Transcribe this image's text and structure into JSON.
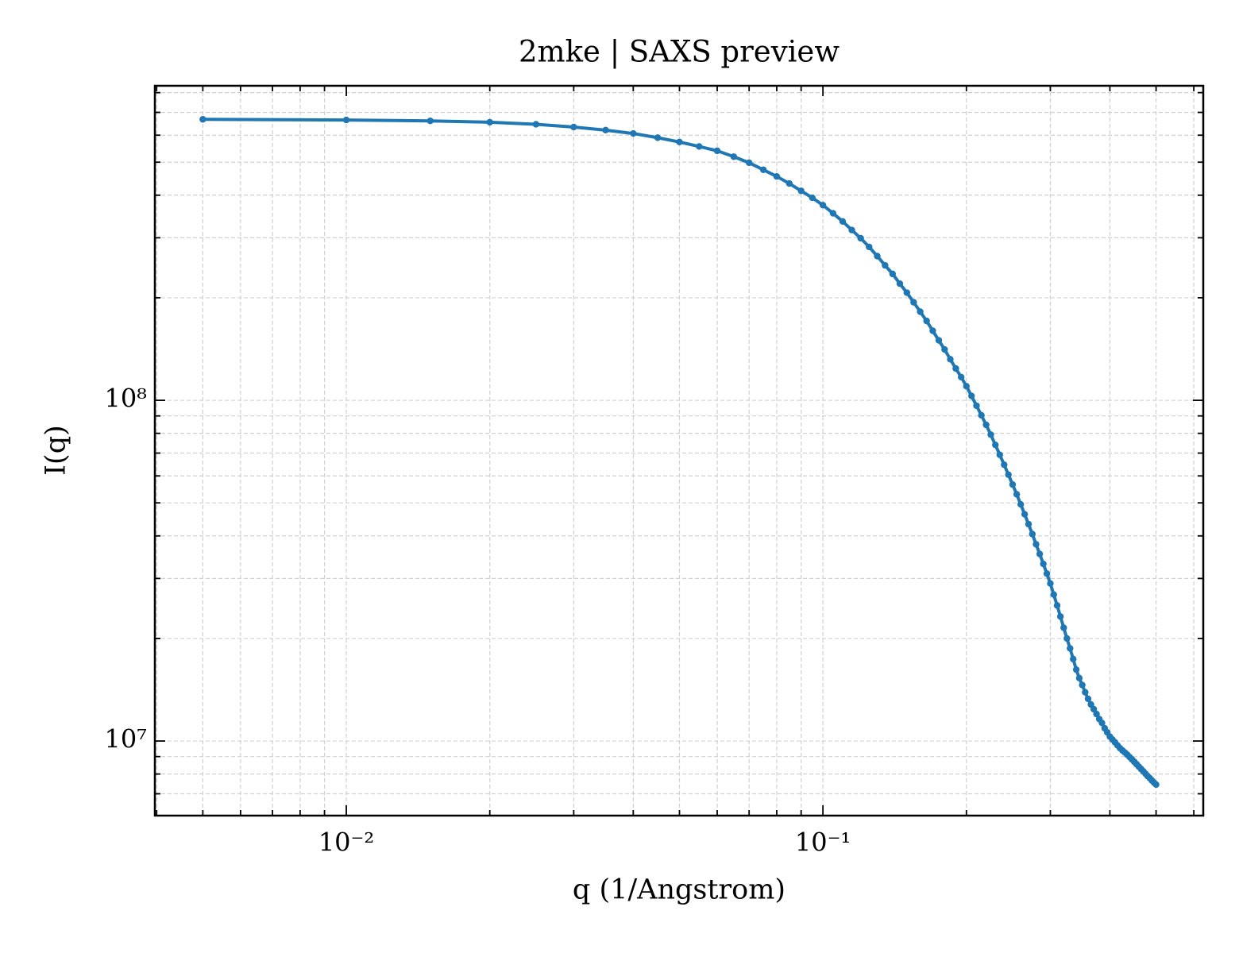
{
  "chart_data": {
    "type": "line",
    "title": "2mke | SAXS preview",
    "xlabel": "q (1/Angstrom)",
    "ylabel": "I(q)",
    "xscale": "log",
    "yscale": "log",
    "grid": true,
    "x": [
      0.005,
      0.01,
      0.015,
      0.02,
      0.025,
      0.03,
      0.035,
      0.04,
      0.045,
      0.05,
      0.055,
      0.06,
      0.065,
      0.07,
      0.075,
      0.08,
      0.085,
      0.09,
      0.095,
      0.1,
      0.105,
      0.11,
      0.115,
      0.12,
      0.125,
      0.13,
      0.135,
      0.14,
      0.145,
      0.15,
      0.155,
      0.16,
      0.165,
      0.17,
      0.175,
      0.18,
      0.185,
      0.19,
      0.195,
      0.2,
      0.205,
      0.21,
      0.215,
      0.22,
      0.225,
      0.23,
      0.235,
      0.24,
      0.245,
      0.25,
      0.255,
      0.26,
      0.265,
      0.27,
      0.275,
      0.28,
      0.285,
      0.29,
      0.295,
      0.3,
      0.305,
      0.31,
      0.315,
      0.32,
      0.325,
      0.33,
      0.335,
      0.34,
      0.345,
      0.35,
      0.355,
      0.36,
      0.365,
      0.37,
      0.375,
      0.38,
      0.385,
      0.39,
      0.395,
      0.4,
      0.405,
      0.41,
      0.415,
      0.42,
      0.425,
      0.43,
      0.435,
      0.44,
      0.445,
      0.45,
      0.455,
      0.46,
      0.465,
      0.47,
      0.475,
      0.48,
      0.485,
      0.49,
      0.495,
      0.5
    ],
    "series": [
      {
        "color": "#1f77b4",
        "values": [
          668000000.0,
          665000000.0,
          661000000.0,
          655000000.0,
          646000000.0,
          634000000.0,
          621000000.0,
          607000000.0,
          590000000.0,
          573000000.0,
          556000000.0,
          540000000.0,
          519000000.0,
          498000000.0,
          475000000.0,
          454000000.0,
          433000000.0,
          412000000.0,
          393000000.0,
          374000000.0,
          354000000.0,
          335000000.0,
          316000000.0,
          299000000.0,
          282000000.0,
          265000000.0,
          249000000.0,
          235000000.0,
          220000000.0,
          207000000.0,
          194000000.0,
          182000000.0,
          171000000.0,
          160000000.0,
          150000000.0,
          141000000.0,
          132000000.0,
          124000000.0,
          117000000.0,
          110000000.0,
          103000000.0,
          96400000.0,
          90400000.0,
          84700000.0,
          79300000.0,
          74000000.0,
          69200000.0,
          64700000.0,
          60500000.0,
          56600000.0,
          53000000.0,
          49500000.0,
          46300000.0,
          43300000.0,
          40500000.0,
          37800000.0,
          35400000.0,
          33100000.0,
          31000000.0,
          29000000.0,
          26900000.0,
          25000000.0,
          23200000.0,
          21500000.0,
          20000000.0,
          18700000.0,
          17400000.0,
          16200000.0,
          15300000.0,
          14600000.0,
          13900000.0,
          13300000.0,
          12800000.0,
          12400000.0,
          12000000.0,
          11600000.0,
          11300000.0,
          10900000.0,
          10600000.0,
          10300000.0,
          10100000.0,
          9910000.0,
          9710000.0,
          9530000.0,
          9380000.0,
          9250000.0,
          9120000.0,
          8970000.0,
          8830000.0,
          8690000.0,
          8550000.0,
          8410000.0,
          8280000.0,
          8150000.0,
          8020000.0,
          7890000.0,
          7780000.0,
          7660000.0,
          7550000.0,
          7450000.0
        ]
      }
    ],
    "xlim": [
      0.003966,
      0.628
    ],
    "ylim": [
      6040000.0,
      838000000.0
    ],
    "xticks": [
      {
        "value": 0.01,
        "label": "10⁻²"
      },
      {
        "value": 0.1,
        "label": "10⁻¹"
      }
    ],
    "yticks": [
      {
        "value": 10000000.0,
        "label": "10⁷"
      },
      {
        "value": 100000000.0,
        "label": "10⁸"
      }
    ],
    "xminorticks": [
      0.004,
      0.005,
      0.006,
      0.007,
      0.008,
      0.009,
      0.02,
      0.03,
      0.04,
      0.05,
      0.06,
      0.07,
      0.08,
      0.09,
      0.2,
      0.3,
      0.4,
      0.5,
      0.6
    ],
    "yminorticks": [
      7000000.0,
      8000000.0,
      9000000.0,
      20000000.0,
      30000000.0,
      40000000.0,
      50000000.0,
      60000000.0,
      70000000.0,
      80000000.0,
      90000000.0,
      200000000.0,
      300000000.0,
      400000000.0,
      500000000.0,
      600000000.0,
      700000000.0,
      800000000.0
    ]
  }
}
